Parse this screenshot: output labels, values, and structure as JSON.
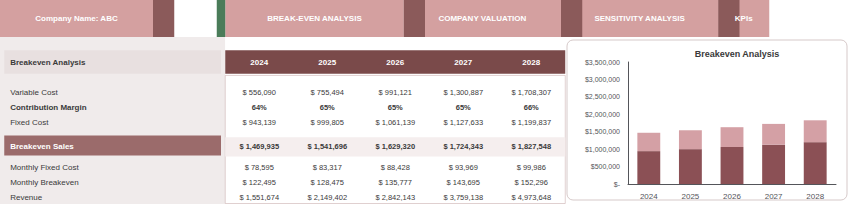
{
  "chart_data": [
    {
      "type": "table",
      "title": "Breakeven Analysis",
      "annotations": [
        "Company Name: ABC",
        "BREAK-EVEN ANALYSIS",
        "COMPANY VALUATION",
        "SENSITIVITY ANALYSIS",
        "KPIs"
      ],
      "categories": [
        "2024",
        "2025",
        "2026",
        "2027",
        "2028"
      ],
      "series": [
        {
          "name": "Variable Cost",
          "values": [
            556090,
            755494,
            991121,
            1300887,
            1708307
          ],
          "value_labels": [
            "$ 556,090",
            "$ 755,494",
            "$ 991,121",
            "$ 1,300,887",
            "$ 1,708,307"
          ]
        },
        {
          "name": "Contribution Margin",
          "values": [
            64,
            65,
            65,
            65,
            66
          ],
          "value_labels": [
            "64%",
            "65%",
            "65%",
            "65%",
            "66%"
          ]
        },
        {
          "name": "Fixed Cost",
          "values": [
            943139,
            999805,
            1061139,
            1127633,
            1199837
          ],
          "value_labels": [
            "$ 943,139",
            "$ 999,805",
            "$ 1,061,139",
            "$ 1,127,633",
            "$ 1,199,837"
          ]
        },
        {
          "name": "Breakeven Sales",
          "values": [
            1469935,
            1541696,
            1629320,
            1724343,
            1827548
          ],
          "value_labels": [
            "$ 1,469,935",
            "$ 1,541,696",
            "$ 1,629,320",
            "$ 1,724,343",
            "$ 1,827,548"
          ]
        },
        {
          "name": "Monthly Fixed Cost",
          "values": [
            78595,
            83317,
            88428,
            93969,
            99986
          ],
          "value_labels": [
            "$ 78,595",
            "$ 83,317",
            "$ 88,428",
            "$ 93,969",
            "$ 99,986"
          ]
        },
        {
          "name": "Monthly Breakeven",
          "values": [
            122495,
            128475,
            135777,
            143695,
            152296
          ],
          "value_labels": [
            "$ 122,495",
            "$ 128,475",
            "$ 135,777",
            "$ 143,695",
            "$ 152,296"
          ]
        },
        {
          "name": "Revenue",
          "values": [
            1551674,
            2149402,
            2842143,
            3759138,
            4973648
          ],
          "value_labels": [
            "$ 1,551,674",
            "$ 2,149,402",
            "$ 2,842,143",
            "$ 3,759,138",
            "$ 4,973,648"
          ]
        }
      ]
    },
    {
      "type": "bar",
      "title": "Breakeven Analysis",
      "categories": [
        "2024",
        "2025",
        "2026",
        "2027",
        "2028"
      ],
      "stacked": true,
      "series": [
        {
          "color": "#8b5055",
          "values": [
            943139,
            999805,
            1061139,
            1127633,
            1199837
          ]
        },
        {
          "color": "#d4a0a5",
          "values": [
            526796,
            541891,
            568181,
            596710,
            627711
          ]
        }
      ],
      "ylim": [
        0,
        3500000
      ],
      "yticks": [
        {
          "value": 0,
          "label": "$-"
        },
        {
          "value": 500000,
          "label": "$500,000"
        },
        {
          "value": 1000000,
          "label": "$1,000,000"
        },
        {
          "value": 1500000,
          "label": "$1,500,000"
        },
        {
          "value": 2000000,
          "label": "$2,000,000"
        },
        {
          "value": 2500000,
          "label": "$2,500,000"
        },
        {
          "value": 3000000,
          "label": "$3,000,000"
        },
        {
          "value": 3500000,
          "label": "$3,500,000"
        }
      ],
      "grid": false
    }
  ]
}
